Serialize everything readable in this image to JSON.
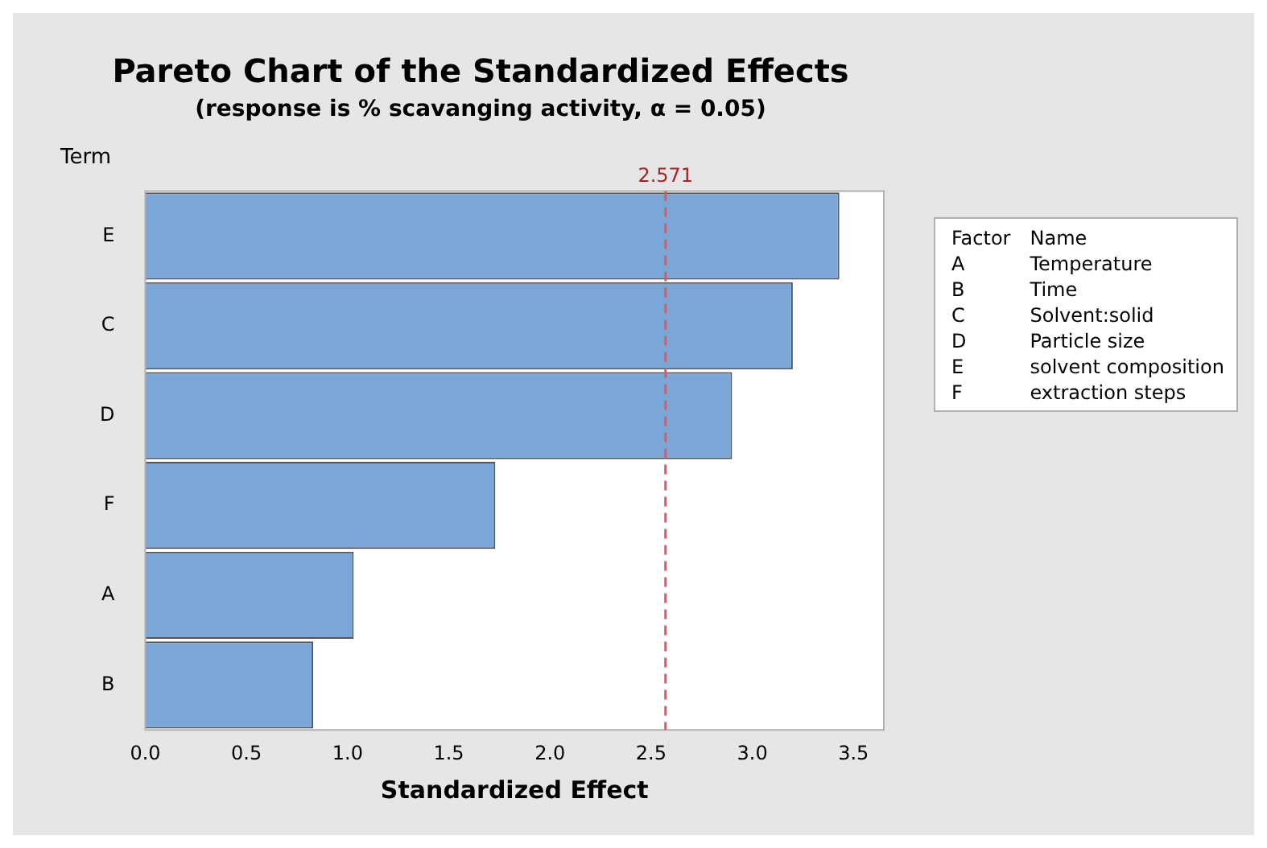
{
  "chart_data": {
    "type": "bar",
    "orientation": "horizontal",
    "title": "Pareto Chart of the Standardized Effects",
    "subtitle": "(response is % scavanging activity, α = 0.05)",
    "xlabel": "Standardized Effect",
    "ylabel": "Term",
    "categories": [
      "E",
      "C",
      "D",
      "F",
      "A",
      "B"
    ],
    "values": [
      3.43,
      3.2,
      2.9,
      1.73,
      1.03,
      0.83
    ],
    "color": "#7ba7d8",
    "xlim": [
      0,
      3.65
    ],
    "xticks": [
      {
        "value": 0,
        "label": "0.0"
      },
      {
        "value": 0.5,
        "label": "0.5"
      },
      {
        "value": 1,
        "label": "1.0"
      },
      {
        "value": 1.5,
        "label": "1.5"
      },
      {
        "value": 2,
        "label": "2.0"
      },
      {
        "value": 2.5,
        "label": "2.5"
      },
      {
        "value": 3,
        "label": "3.0"
      },
      {
        "value": 3.5,
        "label": "3.5"
      }
    ],
    "ref_lines": [
      {
        "axis": "x",
        "value": 2.571,
        "label": "2.571",
        "color": "#e0585f",
        "line_style": "dashed"
      }
    ],
    "annotations": [
      "Factor",
      "Name",
      "A",
      "Temperature",
      "B",
      "Time",
      "C",
      "Solvent:solid",
      "D",
      "Particle size",
      "E",
      "solvent composition",
      "F",
      "extraction steps"
    ],
    "grid": false,
    "legend": false
  }
}
